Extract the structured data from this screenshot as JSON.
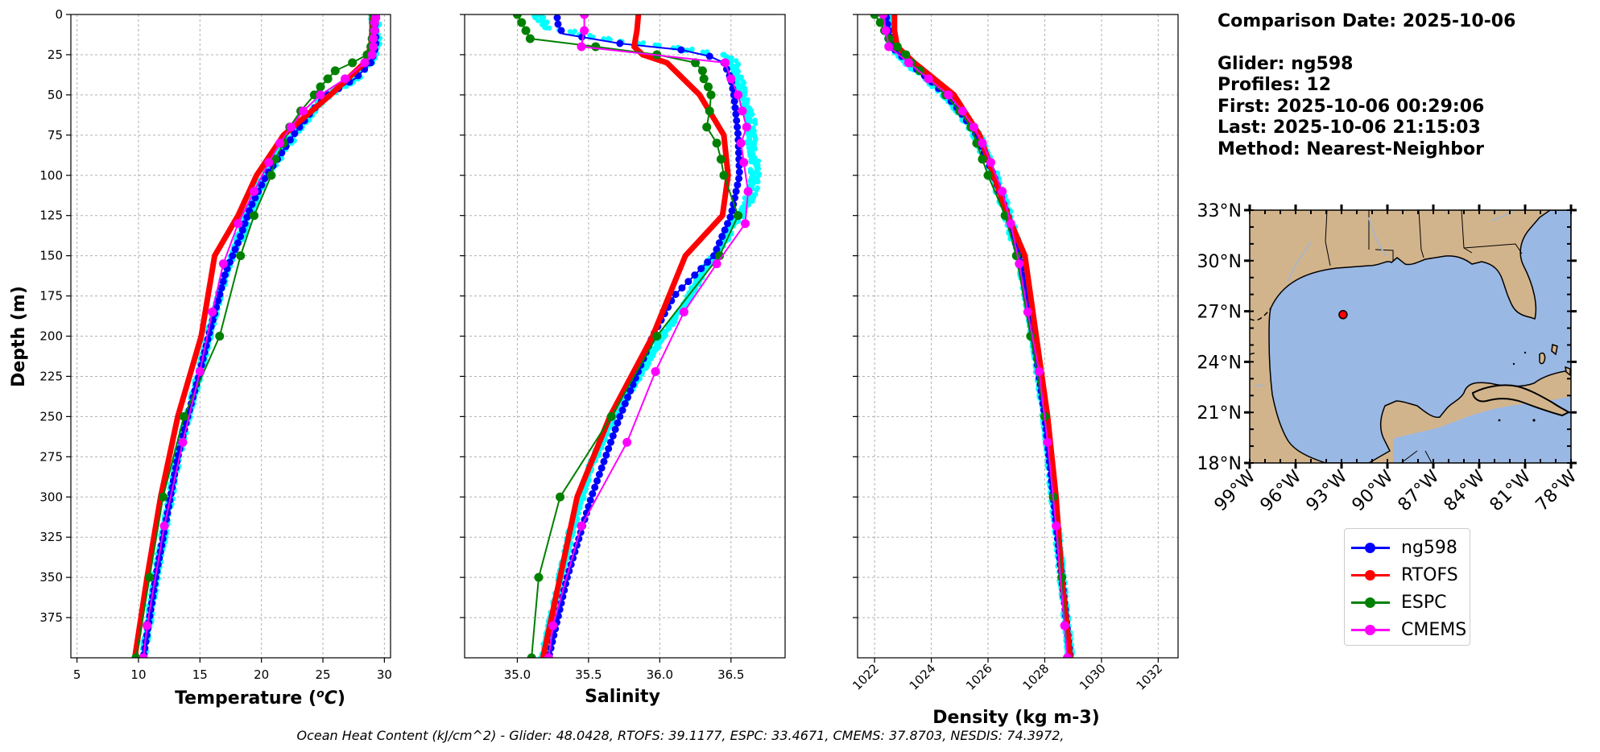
{
  "info": {
    "comparison_date": "Comparison Date: 2025-10-06",
    "glider": "Glider: ng598",
    "profiles": "Profiles: 12",
    "first": "First: 2025-10-06 00:29:06",
    "last": "Last: 2025-10-06 21:15:03",
    "method": "Method: Nearest-Neighbor"
  },
  "footer": "Ocean Heat Content (kJ/cm^2) - Glider: 48.0428,  RTOFS: 39.1177,  ESPC: 33.4671,  CMEMS: 37.8703,  NESDIS: 74.3972,",
  "colors": {
    "ng598": "#0000ff",
    "RTOFS": "#ff0000",
    "ESPC": "#008000",
    "CMEMS": "#ff00ff",
    "glider_raw": "#00ffff",
    "land": "#d2b48c",
    "ocean": "#9ab8e4"
  },
  "legend": [
    {
      "name": "ng598",
      "color": "#0000ff"
    },
    {
      "name": "RTOFS",
      "color": "#ff0000"
    },
    {
      "name": "ESPC",
      "color": "#008000"
    },
    {
      "name": "CMEMS",
      "color": "#ff00ff"
    }
  ],
  "chart_data": [
    {
      "type": "line",
      "xlabel": "Temperature ($^oC$)",
      "xlabel_parts": [
        "Temperature (",
        "o",
        "C",
        ")"
      ],
      "ylabel": "Depth (m)",
      "xlim": [
        4.5,
        30.5
      ],
      "ylim": [
        400,
        0
      ],
      "xticks": [
        5,
        10,
        15,
        20,
        25,
        30
      ],
      "yticks": [
        0,
        25,
        50,
        75,
        100,
        125,
        150,
        175,
        200,
        225,
        250,
        275,
        300,
        325,
        350,
        375
      ],
      "grid": true,
      "series": [
        {
          "name": "ng598",
          "depth": [
            2,
            10,
            20,
            30,
            40,
            50,
            60,
            75,
            90,
            100,
            120,
            140,
            160,
            180,
            200,
            225,
            250,
            275,
            300,
            325,
            350,
            375,
            400
          ],
          "values": [
            29.2,
            29.3,
            29.3,
            28.9,
            27.6,
            25.4,
            24.1,
            22.6,
            21.3,
            20.4,
            19.1,
            18.2,
            17.1,
            16.4,
            15.7,
            14.9,
            14.0,
            13.2,
            12.6,
            12.0,
            11.4,
            10.9,
            10.4
          ]
        },
        {
          "name": "RTOFS",
          "depth": [
            0,
            10,
            20,
            30,
            50,
            75,
            100,
            125,
            150,
            200,
            250,
            300,
            350,
            400
          ],
          "values": [
            29.0,
            29.0,
            28.9,
            28.4,
            25.6,
            21.8,
            19.6,
            18.1,
            16.2,
            15.1,
            13.2,
            11.8,
            10.7,
            9.7
          ]
        },
        {
          "name": "ESPC",
          "depth": [
            0,
            5,
            10,
            15,
            20,
            25,
            30,
            35,
            40,
            45,
            50,
            60,
            70,
            80,
            90,
            100,
            125,
            150,
            200,
            250,
            300,
            350,
            400
          ],
          "values": [
            29.1,
            29.1,
            29.1,
            29.0,
            28.9,
            28.6,
            27.4,
            26.0,
            25.4,
            24.8,
            24.3,
            23.2,
            22.3,
            21.8,
            21.1,
            20.8,
            19.4,
            18.3,
            16.6,
            13.7,
            12.0,
            10.9,
            9.8
          ]
        },
        {
          "name": "CMEMS",
          "depth": [
            0,
            2,
            5,
            10,
            15,
            20,
            25,
            30,
            40,
            50,
            60,
            70,
            80,
            92,
            110,
            130,
            155,
            185,
            222,
            266,
            318,
            380,
            400
          ],
          "values": [
            29.3,
            29.3,
            29.2,
            29.2,
            29.1,
            29.1,
            29.0,
            28.4,
            26.8,
            24.8,
            23.4,
            22.4,
            21.5,
            20.6,
            19.4,
            18.1,
            16.9,
            16.0,
            15.0,
            13.6,
            12.1,
            10.7,
            10.4
          ]
        }
      ]
    },
    {
      "type": "line",
      "xlabel": "Salinity",
      "ylim": [
        400,
        0
      ],
      "xlim": [
        34.63,
        36.88
      ],
      "xticks": [
        35.0,
        35.5,
        36.0,
        36.5
      ],
      "xtick_labels": [
        "35.0",
        "35.5",
        "36.0",
        "36.5"
      ],
      "yticks": [
        0,
        25,
        50,
        75,
        100,
        125,
        150,
        175,
        200,
        225,
        250,
        275,
        300,
        325,
        350,
        375
      ],
      "grid": true,
      "series": [
        {
          "name": "ng598",
          "depth": [
            5,
            12,
            18,
            22,
            26,
            30,
            40,
            50,
            75,
            100,
            125,
            150,
            175,
            200,
            250,
            300,
            350,
            400
          ],
          "values": [
            35.28,
            35.32,
            35.72,
            36.15,
            36.35,
            36.45,
            36.5,
            36.52,
            36.55,
            36.56,
            36.5,
            36.38,
            36.1,
            35.95,
            35.72,
            35.52,
            35.35,
            35.22
          ]
        },
        {
          "name": "RTOFS",
          "depth": [
            0,
            10,
            20,
            25,
            30,
            50,
            75,
            100,
            125,
            150,
            200,
            250,
            300,
            350,
            400
          ],
          "values": [
            35.85,
            35.84,
            35.82,
            35.88,
            36.05,
            36.28,
            36.45,
            36.48,
            36.44,
            36.18,
            35.95,
            35.65,
            35.42,
            35.3,
            35.18
          ]
        },
        {
          "name": "ESPC",
          "depth": [
            0,
            5,
            10,
            15,
            20,
            25,
            30,
            35,
            40,
            45,
            50,
            60,
            70,
            80,
            90,
            100,
            125,
            150,
            200,
            250,
            300,
            350,
            400
          ],
          "values": [
            35.0,
            35.03,
            35.06,
            35.09,
            35.55,
            35.98,
            36.25,
            36.3,
            36.31,
            36.34,
            36.36,
            36.35,
            36.33,
            36.4,
            36.43,
            36.45,
            36.55,
            36.42,
            35.98,
            35.66,
            35.3,
            35.15,
            35.1
          ]
        },
        {
          "name": "CMEMS",
          "depth": [
            0,
            10,
            20,
            30,
            40,
            50,
            60,
            70,
            80,
            92,
            110,
            130,
            155,
            185,
            222,
            266,
            318,
            380,
            400
          ],
          "values": [
            35.47,
            35.47,
            35.45,
            36.46,
            36.5,
            36.55,
            36.58,
            36.61,
            36.57,
            36.59,
            36.62,
            36.6,
            36.4,
            36.17,
            35.97,
            35.77,
            35.45,
            35.25,
            35.22
          ]
        },
        {
          "name": "glider_raw",
          "depth": [
            2,
            8,
            14,
            20,
            25,
            30,
            40,
            50,
            60,
            70,
            80,
            90,
            100,
            110,
            120,
            130,
            145,
            160,
            180,
            200,
            225,
            250,
            280,
            320,
            360,
            400
          ],
          "values": [
            35.15,
            35.22,
            35.55,
            36.05,
            36.45,
            36.52,
            36.55,
            36.58,
            36.62,
            36.65,
            36.64,
            36.66,
            36.67,
            36.65,
            36.6,
            36.52,
            36.42,
            36.3,
            36.18,
            36.02,
            35.85,
            35.68,
            35.52,
            35.38,
            35.28,
            35.18
          ]
        }
      ]
    },
    {
      "type": "line",
      "xlabel": "Density (kg m-3)",
      "ylim": [
        400,
        0
      ],
      "xlim": [
        1021.4,
        1032.7
      ],
      "xticks": [
        1022,
        1024,
        1026,
        1028,
        1030,
        1032
      ],
      "yticks": [
        0,
        25,
        50,
        75,
        100,
        125,
        150,
        175,
        200,
        225,
        250,
        275,
        300,
        325,
        350,
        375
      ],
      "grid": true,
      "series": [
        {
          "name": "ng598",
          "depth": [
            0,
            10,
            20,
            30,
            40,
            50,
            60,
            75,
            100,
            125,
            150,
            200,
            250,
            300,
            350,
            400
          ],
          "values": [
            1022.4,
            1022.5,
            1022.6,
            1023.2,
            1023.9,
            1024.5,
            1025.0,
            1025.6,
            1026.2,
            1026.7,
            1027.1,
            1027.6,
            1028.0,
            1028.3,
            1028.6,
            1028.9
          ]
        },
        {
          "name": "RTOFS",
          "depth": [
            0,
            10,
            20,
            30,
            50,
            75,
            100,
            125,
            150,
            200,
            250,
            300,
            350,
            400
          ],
          "values": [
            1022.7,
            1022.7,
            1022.8,
            1023.4,
            1024.8,
            1025.7,
            1026.2,
            1026.7,
            1027.3,
            1027.7,
            1028.1,
            1028.4,
            1028.6,
            1028.9
          ]
        },
        {
          "name": "ESPC",
          "depth": [
            0,
            5,
            10,
            15,
            20,
            25,
            30,
            35,
            40,
            50,
            60,
            70,
            80,
            90,
            100,
            125,
            150,
            200,
            250,
            300,
            350,
            400
          ],
          "values": [
            1022.0,
            1022.2,
            1022.35,
            1022.5,
            1022.8,
            1023.1,
            1023.3,
            1023.6,
            1023.9,
            1024.5,
            1025.0,
            1025.4,
            1025.6,
            1025.8,
            1026.0,
            1026.6,
            1027.0,
            1027.5,
            1028.0,
            1028.3,
            1028.6,
            1028.8
          ]
        },
        {
          "name": "CMEMS",
          "depth": [
            0,
            10,
            20,
            30,
            40,
            50,
            60,
            70,
            80,
            92,
            110,
            130,
            155,
            185,
            222,
            266,
            318,
            380,
            400
          ],
          "values": [
            1022.3,
            1022.4,
            1022.5,
            1023.2,
            1023.9,
            1024.6,
            1025.1,
            1025.5,
            1025.8,
            1026.1,
            1026.5,
            1026.8,
            1027.1,
            1027.4,
            1027.8,
            1028.1,
            1028.4,
            1028.7,
            1028.8
          ]
        }
      ]
    },
    {
      "type": "map",
      "lat_ticks": [
        "33°N",
        "30°N",
        "27°N",
        "24°N",
        "21°N",
        "18°N"
      ],
      "lon_ticks": [
        "99°W",
        "96°W",
        "93°W",
        "90°W",
        "87°W",
        "84°W",
        "81°W",
        "78°W"
      ],
      "lat_range": [
        18,
        33
      ],
      "lon_range": [
        -99,
        -78
      ],
      "glider_position": {
        "lon": -92.9,
        "lat": 26.8
      }
    }
  ]
}
